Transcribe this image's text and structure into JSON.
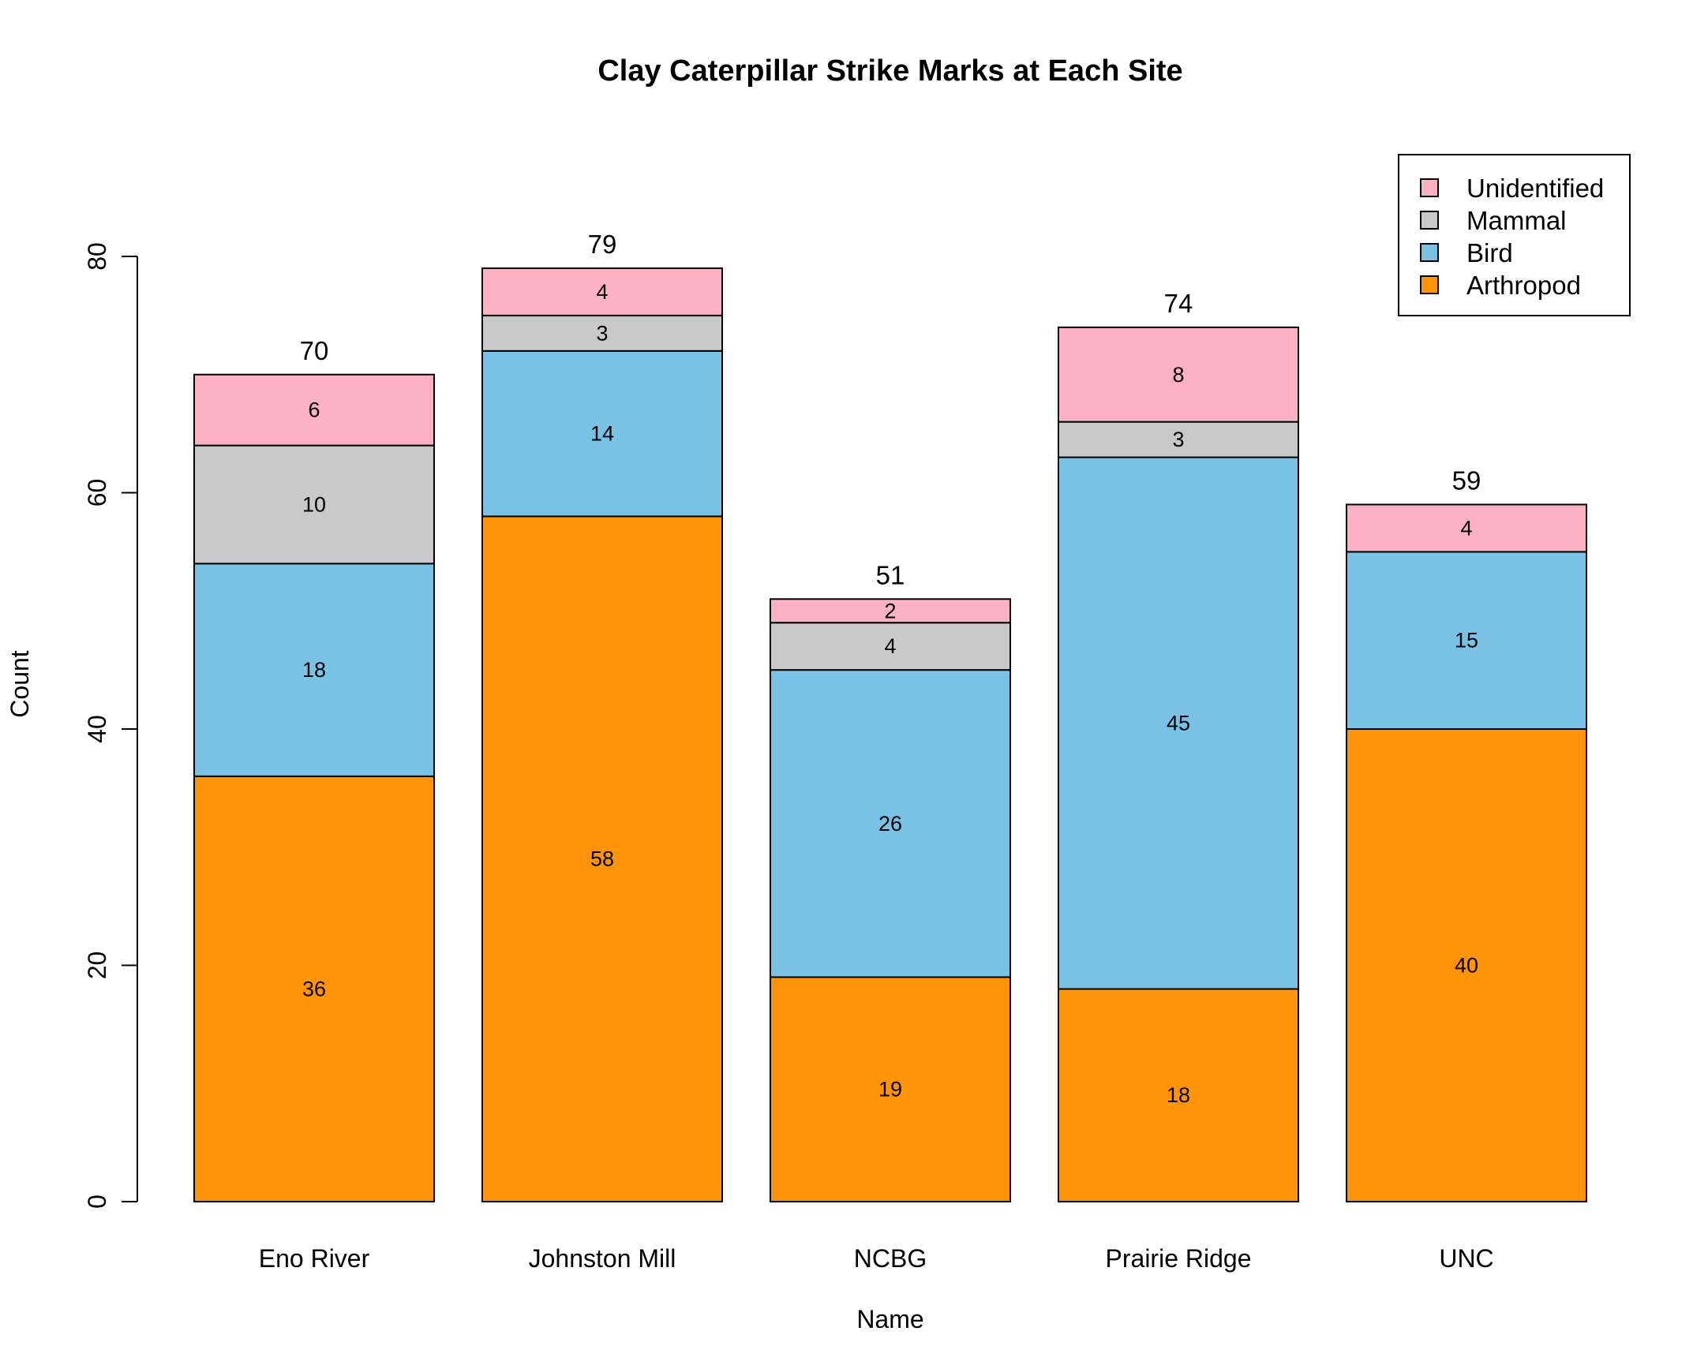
{
  "chart_data": {
    "type": "bar",
    "stacked": true,
    "title": "Clay Caterpillar Strike Marks at Each Site",
    "xlabel": "Name",
    "ylabel": "Count",
    "ylim": [
      0,
      80
    ],
    "yticks": [
      0,
      20,
      40,
      60,
      80
    ],
    "grid": false,
    "legend_position": "top-right",
    "categories": [
      "Eno River",
      "Johnston Mill",
      "NCBG",
      "Prairie Ridge",
      "UNC"
    ],
    "series": [
      {
        "name": "Arthropod",
        "color": "#ff9408",
        "values": [
          36,
          58,
          19,
          18,
          40
        ]
      },
      {
        "name": "Bird",
        "color": "#79c2e5",
        "values": [
          18,
          14,
          26,
          45,
          15
        ]
      },
      {
        "name": "Mammal",
        "color": "#c9c9c9",
        "values": [
          10,
          3,
          4,
          3,
          0
        ]
      },
      {
        "name": "Unidentified",
        "color": "#fcb2c3",
        "values": [
          6,
          4,
          2,
          8,
          4
        ]
      }
    ],
    "totals": [
      70,
      79,
      51,
      74,
      59
    ],
    "legend_order": [
      "Unidentified",
      "Mammal",
      "Bird",
      "Arthropod"
    ]
  }
}
